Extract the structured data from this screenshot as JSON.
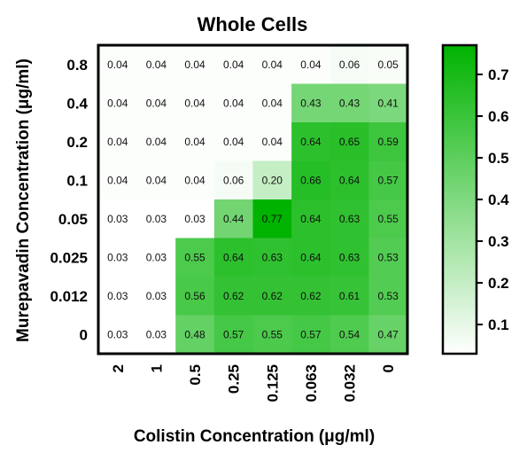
{
  "chart_data": {
    "type": "heatmap",
    "title": "Whole Cells",
    "xlabel": "Colistin Concentration (μg/ml)",
    "ylabel": "Murepavadin Concentration (μg/ml)",
    "x_categories": [
      "2",
      "1",
      "0.5",
      "0.25",
      "0.125",
      "0.063",
      "0.032",
      "0"
    ],
    "y_categories": [
      "0.8",
      "0.4",
      "0.2",
      "0.1",
      "0.05",
      "0.025",
      "0.012",
      "0"
    ],
    "values": [
      [
        0.04,
        0.04,
        0.04,
        0.04,
        0.04,
        0.04,
        0.06,
        0.05
      ],
      [
        0.04,
        0.04,
        0.04,
        0.04,
        0.04,
        0.43,
        0.43,
        0.41
      ],
      [
        0.04,
        0.04,
        0.04,
        0.04,
        0.04,
        0.64,
        0.65,
        0.59
      ],
      [
        0.04,
        0.04,
        0.04,
        0.06,
        0.2,
        0.66,
        0.64,
        0.57
      ],
      [
        0.03,
        0.03,
        0.03,
        0.44,
        0.77,
        0.64,
        0.63,
        0.55
      ],
      [
        0.03,
        0.03,
        0.55,
        0.64,
        0.63,
        0.64,
        0.63,
        0.53
      ],
      [
        0.03,
        0.03,
        0.56,
        0.62,
        0.62,
        0.62,
        0.61,
        0.53
      ],
      [
        0.03,
        0.03,
        0.48,
        0.57,
        0.55,
        0.57,
        0.54,
        0.47
      ]
    ],
    "value_labels": [
      [
        "0.04",
        "0.04",
        "0.04",
        "0.04",
        "0.04",
        "0.04",
        "0.06",
        "0.05"
      ],
      [
        "0.04",
        "0.04",
        "0.04",
        "0.04",
        "0.04",
        "0.43",
        "0.43",
        "0.41"
      ],
      [
        "0.04",
        "0.04",
        "0.04",
        "0.04",
        "0.04",
        "0.64",
        "0.65",
        "0.59"
      ],
      [
        "0.04",
        "0.04",
        "0.04",
        "0.06",
        "0.20",
        "0.66",
        "0.64",
        "0.57"
      ],
      [
        "0.03",
        "0.03",
        "0.03",
        "0.44",
        "0.77",
        "0.64",
        "0.63",
        "0.55"
      ],
      [
        "0.03",
        "0.03",
        "0.55",
        "0.64",
        "0.63",
        "0.64",
        "0.63",
        "0.53"
      ],
      [
        "0.03",
        "0.03",
        "0.56",
        "0.62",
        "0.62",
        "0.62",
        "0.61",
        "0.53"
      ],
      [
        "0.03",
        "0.03",
        "0.48",
        "0.57",
        "0.55",
        "0.57",
        "0.54",
        "0.47"
      ]
    ],
    "colorbar": {
      "min": 0.03,
      "max": 0.77,
      "ticks": [
        "0.7",
        "0.6",
        "0.5",
        "0.4",
        "0.3",
        "0.2",
        "0.1"
      ],
      "tick_values": [
        0.7,
        0.6,
        0.5,
        0.4,
        0.3,
        0.2,
        0.1
      ],
      "color_low": "#ffffff",
      "color_high": "#00b300"
    },
    "grid": false
  }
}
